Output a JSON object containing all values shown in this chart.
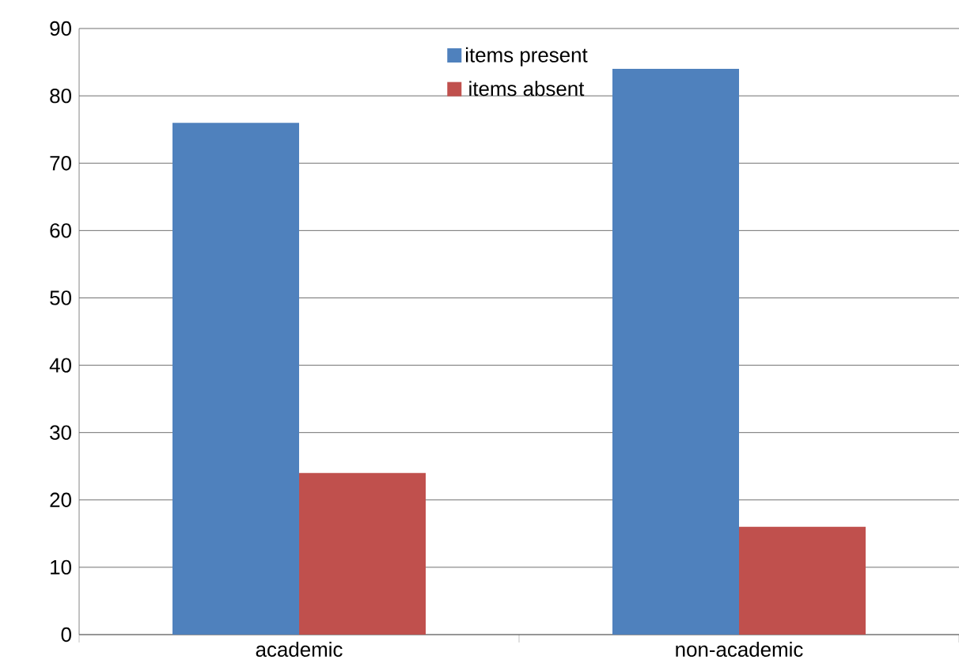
{
  "chart_data": {
    "type": "bar",
    "categories": [
      "academic",
      "non-academic"
    ],
    "series": [
      {
        "name": "items present",
        "color": "#4f81bd",
        "values": [
          76,
          84
        ]
      },
      {
        "name": "items absent",
        "color": "#c0504d",
        "values": [
          24,
          16
        ]
      }
    ],
    "ylim": [
      0,
      90
    ],
    "yticks": [
      0,
      10,
      20,
      30,
      40,
      50,
      60,
      70,
      80,
      90
    ],
    "grid": "y",
    "legend": "top"
  }
}
